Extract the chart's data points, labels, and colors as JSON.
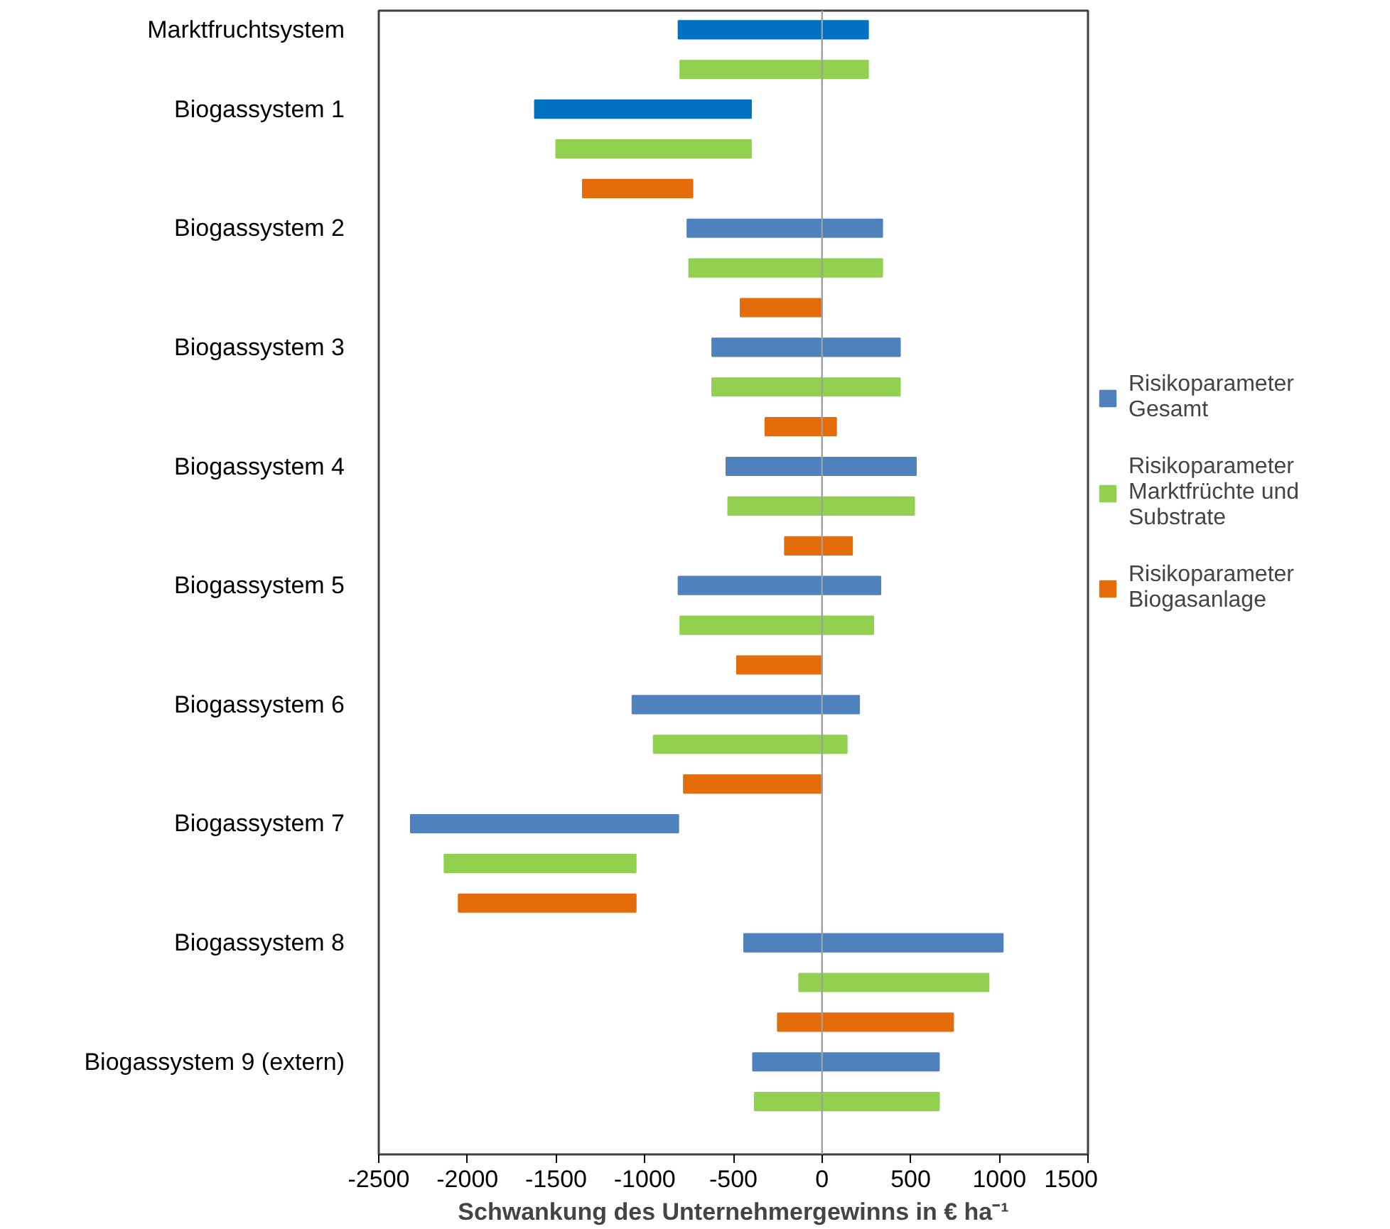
{
  "chart_data": {
    "type": "bar",
    "orientation": "horizontal",
    "xlabel": "Schwankung des Unternehmergewinns in € ha⁻¹",
    "categories": [
      "Marktfruchtsystem",
      null,
      "Biogassystem 1",
      null,
      null,
      "Biogassystem 2",
      null,
      null,
      "Biogassystem 3",
      null,
      null,
      "Biogassystem 4",
      null,
      null,
      "Biogassystem 5",
      null,
      null,
      "Biogassystem 6",
      null,
      null,
      "Biogassystem 7",
      null,
      null,
      "Biogassystem 8",
      null,
      null,
      "Biogassystem 9 (extern)",
      null
    ],
    "series": [
      {
        "name": "Risikoparameter Gesamt",
        "color": "#4f81bd",
        "colors": [
          "#0070c0",
          null,
          "#0070c0",
          null,
          null,
          "#4f81bd",
          null,
          null,
          "#4f81bd",
          null,
          null,
          "#4f81bd",
          null,
          null,
          "#4f81bd",
          null,
          null,
          "#4f81bd",
          null,
          null,
          "#4f81bd",
          null,
          null,
          "#4f81bd",
          null,
          null,
          "#4f81bd",
          null
        ],
        "base": [
          -810,
          null,
          -1620,
          null,
          null,
          -760,
          null,
          null,
          -620,
          null,
          null,
          -540,
          null,
          null,
          -810,
          null,
          null,
          -1070,
          null,
          null,
          -2320,
          null,
          null,
          -440,
          null,
          null,
          -390,
          null
        ],
        "values": [
          1070,
          null,
          1220,
          null,
          null,
          1100,
          null,
          null,
          1060,
          null,
          null,
          1070,
          null,
          null,
          1140,
          null,
          null,
          1280,
          null,
          null,
          1510,
          null,
          null,
          1460,
          null,
          null,
          1050,
          null
        ]
      },
      {
        "name": "Risikoparameter Marktfrüchte und Substrate",
        "color": "#92d050",
        "base": [
          null,
          -800,
          null,
          -1500,
          null,
          null,
          -750,
          null,
          null,
          -620,
          null,
          null,
          -530,
          null,
          null,
          -800,
          null,
          null,
          -950,
          null,
          null,
          -2130,
          null,
          null,
          -130,
          null,
          null,
          -380
        ],
        "values": [
          null,
          1060,
          null,
          1100,
          null,
          null,
          1090,
          null,
          null,
          1060,
          null,
          null,
          1050,
          null,
          null,
          1090,
          null,
          null,
          1090,
          null,
          null,
          1080,
          null,
          null,
          1070,
          null,
          null,
          1040
        ]
      },
      {
        "name": "Risikoparameter Biogasanlage",
        "color": "#e46c0a",
        "base": [
          null,
          null,
          null,
          null,
          -1350,
          null,
          null,
          -460,
          null,
          null,
          -320,
          null,
          null,
          -210,
          null,
          null,
          -480,
          null,
          null,
          -780,
          null,
          null,
          -2050,
          null,
          null,
          -250,
          null,
          null
        ],
        "values": [
          null,
          null,
          null,
          null,
          620,
          null,
          null,
          460,
          null,
          null,
          400,
          null,
          null,
          380,
          null,
          null,
          480,
          null,
          null,
          780,
          null,
          null,
          1000,
          null,
          null,
          990,
          null,
          null
        ]
      }
    ],
    "xlim": [
      -2500,
      1500
    ],
    "xticks": [
      -2500,
      -2000,
      -1500,
      -1000,
      -500,
      0,
      500,
      1000,
      1500
    ],
    "ref_lines": [
      {
        "axis": "x",
        "value": 0,
        "color": "#a0a0a0"
      }
    ],
    "grid": false,
    "legend": "right"
  }
}
